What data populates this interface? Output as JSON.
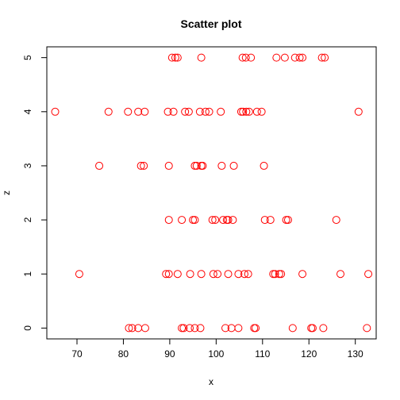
{
  "chart_data": {
    "type": "scatter",
    "title": "Scatter plot",
    "xlabel": "x",
    "ylabel": "z",
    "xlim": [
      63.5,
      134.5
    ],
    "ylim": [
      -0.2,
      5.2
    ],
    "x_ticks": [
      70,
      80,
      90,
      100,
      110,
      120,
      130
    ],
    "y_ticks": [
      0,
      1,
      2,
      3,
      4,
      5
    ],
    "grid": false,
    "marker": "open-circle",
    "marker_color": "#ff0000",
    "series": [
      {
        "points": [
          {
            "x": 81.2,
            "y": 0
          },
          {
            "x": 81.9,
            "y": 0
          },
          {
            "x": 83.2,
            "y": 0
          },
          {
            "x": 84.7,
            "y": 0
          },
          {
            "x": 92.6,
            "y": 0
          },
          {
            "x": 93.0,
            "y": 0
          },
          {
            "x": 94.3,
            "y": 0
          },
          {
            "x": 95.4,
            "y": 0
          },
          {
            "x": 96.6,
            "y": 0
          },
          {
            "x": 102.0,
            "y": 0
          },
          {
            "x": 103.3,
            "y": 0
          },
          {
            "x": 104.8,
            "y": 0
          },
          {
            "x": 108.2,
            "y": 0
          },
          {
            "x": 108.5,
            "y": 0
          },
          {
            "x": 116.5,
            "y": 0
          },
          {
            "x": 120.5,
            "y": 0
          },
          {
            "x": 120.8,
            "y": 0
          },
          {
            "x": 123.1,
            "y": 0
          },
          {
            "x": 132.5,
            "y": 0
          },
          {
            "x": 70.5,
            "y": 1
          },
          {
            "x": 89.2,
            "y": 1
          },
          {
            "x": 89.8,
            "y": 1
          },
          {
            "x": 91.7,
            "y": 1
          },
          {
            "x": 94.4,
            "y": 1
          },
          {
            "x": 96.8,
            "y": 1
          },
          {
            "x": 99.4,
            "y": 1
          },
          {
            "x": 100.3,
            "y": 1
          },
          {
            "x": 102.6,
            "y": 1
          },
          {
            "x": 104.8,
            "y": 1
          },
          {
            "x": 106.1,
            "y": 1
          },
          {
            "x": 106.9,
            "y": 1
          },
          {
            "x": 112.3,
            "y": 1
          },
          {
            "x": 112.7,
            "y": 1
          },
          {
            "x": 113.6,
            "y": 1
          },
          {
            "x": 114.0,
            "y": 1
          },
          {
            "x": 118.6,
            "y": 1
          },
          {
            "x": 126.8,
            "y": 1
          },
          {
            "x": 132.8,
            "y": 1
          },
          {
            "x": 89.8,
            "y": 2
          },
          {
            "x": 92.6,
            "y": 2
          },
          {
            "x": 95.0,
            "y": 2
          },
          {
            "x": 95.4,
            "y": 2
          },
          {
            "x": 99.2,
            "y": 2
          },
          {
            "x": 99.8,
            "y": 2
          },
          {
            "x": 101.5,
            "y": 2
          },
          {
            "x": 102.3,
            "y": 2
          },
          {
            "x": 102.6,
            "y": 2
          },
          {
            "x": 103.6,
            "y": 2
          },
          {
            "x": 110.5,
            "y": 2
          },
          {
            "x": 111.7,
            "y": 2
          },
          {
            "x": 115.1,
            "y": 2
          },
          {
            "x": 115.5,
            "y": 2
          },
          {
            "x": 125.9,
            "y": 2
          },
          {
            "x": 74.8,
            "y": 3
          },
          {
            "x": 83.8,
            "y": 3
          },
          {
            "x": 84.4,
            "y": 3
          },
          {
            "x": 89.8,
            "y": 3
          },
          {
            "x": 95.4,
            "y": 3
          },
          {
            "x": 95.8,
            "y": 3
          },
          {
            "x": 96.8,
            "y": 3
          },
          {
            "x": 97.1,
            "y": 3
          },
          {
            "x": 101.2,
            "y": 3
          },
          {
            "x": 103.8,
            "y": 3
          },
          {
            "x": 110.3,
            "y": 3
          },
          {
            "x": 65.3,
            "y": 4
          },
          {
            "x": 76.8,
            "y": 4
          },
          {
            "x": 81.0,
            "y": 4
          },
          {
            "x": 83.2,
            "y": 4
          },
          {
            "x": 84.6,
            "y": 4
          },
          {
            "x": 89.6,
            "y": 4
          },
          {
            "x": 90.8,
            "y": 4
          },
          {
            "x": 93.3,
            "y": 4
          },
          {
            "x": 94.1,
            "y": 4
          },
          {
            "x": 96.5,
            "y": 4
          },
          {
            "x": 97.7,
            "y": 4
          },
          {
            "x": 98.5,
            "y": 4
          },
          {
            "x": 101.0,
            "y": 4
          },
          {
            "x": 105.4,
            "y": 4
          },
          {
            "x": 105.8,
            "y": 4
          },
          {
            "x": 106.5,
            "y": 4
          },
          {
            "x": 107.1,
            "y": 4
          },
          {
            "x": 108.8,
            "y": 4
          },
          {
            "x": 109.8,
            "y": 4
          },
          {
            "x": 130.7,
            "y": 4
          },
          {
            "x": 90.5,
            "y": 5
          },
          {
            "x": 91.2,
            "y": 5
          },
          {
            "x": 91.7,
            "y": 5
          },
          {
            "x": 96.8,
            "y": 5
          },
          {
            "x": 105.7,
            "y": 5
          },
          {
            "x": 106.4,
            "y": 5
          },
          {
            "x": 107.5,
            "y": 5
          },
          {
            "x": 113.0,
            "y": 5
          },
          {
            "x": 114.8,
            "y": 5
          },
          {
            "x": 117.0,
            "y": 5
          },
          {
            "x": 118.0,
            "y": 5
          },
          {
            "x": 118.6,
            "y": 5
          },
          {
            "x": 122.8,
            "y": 5
          },
          {
            "x": 123.4,
            "y": 5
          }
        ]
      }
    ]
  }
}
